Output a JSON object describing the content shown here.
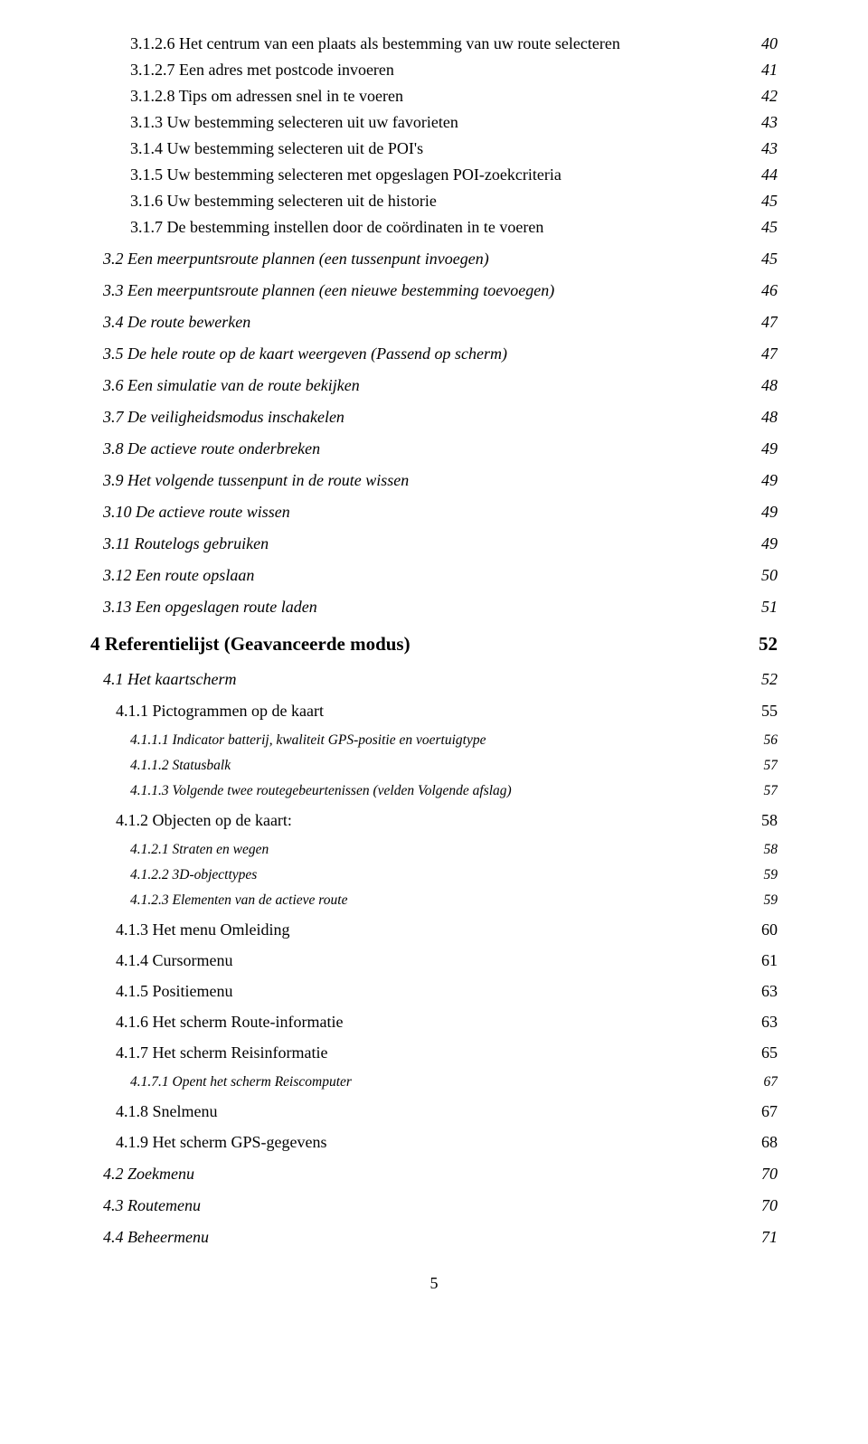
{
  "page_number": "5",
  "entries": [
    {
      "level": "a",
      "title": "3.1.2.6 Het centrum van een plaats als bestemming van uw route selecteren",
      "page": "40"
    },
    {
      "level": "a",
      "title": "3.1.2.7 Een adres met postcode invoeren",
      "page": "41"
    },
    {
      "level": "a",
      "title": "3.1.2.8 Tips om adressen snel in te voeren",
      "page": "42"
    },
    {
      "level": "a",
      "title": "3.1.3 Uw bestemming selecteren uit uw favorieten",
      "page": "43"
    },
    {
      "level": "a",
      "title": "3.1.4 Uw bestemming selecteren uit de POI's",
      "page": "43"
    },
    {
      "level": "a",
      "title": "3.1.5 Uw bestemming selecteren met opgeslagen POI-zoekcriteria",
      "page": "44"
    },
    {
      "level": "a",
      "title": "3.1.6 Uw bestemming selecteren uit de historie",
      "page": "45"
    },
    {
      "level": "a",
      "title": "3.1.7 De bestemming instellen door de coördinaten in te voeren",
      "page": "45"
    },
    {
      "level": "b",
      "title": "3.2 Een meerpuntsroute plannen (een tussenpunt invoegen)",
      "page": "45"
    },
    {
      "level": "b",
      "title": "3.3 Een meerpuntsroute plannen (een nieuwe bestemming toevoegen)",
      "page": "46"
    },
    {
      "level": "b",
      "title": "3.4 De route bewerken",
      "page": "47"
    },
    {
      "level": "b",
      "title": "3.5 De hele route op de kaart weergeven (Passend op scherm)",
      "page": "47"
    },
    {
      "level": "b",
      "title": "3.6 Een simulatie van de route bekijken",
      "page": "48"
    },
    {
      "level": "b",
      "title": "3.7 De veiligheidsmodus inschakelen",
      "page": "48"
    },
    {
      "level": "b",
      "title": "3.8 De actieve route onderbreken",
      "page": "49"
    },
    {
      "level": "b",
      "title": "3.9 Het volgende tussenpunt in de route wissen",
      "page": "49"
    },
    {
      "level": "b",
      "title": "3.10 De actieve route wissen",
      "page": "49"
    },
    {
      "level": "b",
      "title": "3.11 Routelogs gebruiken",
      "page": "49"
    },
    {
      "level": "b",
      "title": "3.12 Een route opslaan",
      "page": "50"
    },
    {
      "level": "b",
      "title": "3.13 Een opgeslagen route laden",
      "page": "51"
    },
    {
      "level": "s",
      "title": "4 Referentielijst (Geavanceerde modus)",
      "page": "52"
    },
    {
      "level": "b",
      "title": "4.1 Het kaartscherm",
      "page": "52"
    },
    {
      "level": "c",
      "title": "4.1.1 Pictogrammen op de kaart",
      "page": "55"
    },
    {
      "level": "d",
      "title": "4.1.1.1 Indicator batterij, kwaliteit GPS-positie en voertuigtype",
      "page": "56"
    },
    {
      "level": "d",
      "title": "4.1.1.2 Statusbalk",
      "page": "57"
    },
    {
      "level": "d",
      "title": "4.1.1.3 Volgende twee routegebeurtenissen (velden Volgende afslag)",
      "page": "57"
    },
    {
      "level": "c",
      "title": "4.1.2 Objecten op de kaart:",
      "page": "58"
    },
    {
      "level": "d",
      "title": "4.1.2.1 Straten en wegen",
      "page": "58"
    },
    {
      "level": "d",
      "title": "4.1.2.2 3D-objecttypes",
      "page": "59"
    },
    {
      "level": "d",
      "title": "4.1.2.3 Elementen van de actieve route",
      "page": "59"
    },
    {
      "level": "c",
      "title": "4.1.3 Het menu Omleiding",
      "page": "60"
    },
    {
      "level": "c",
      "title": "4.1.4 Cursormenu",
      "page": "61"
    },
    {
      "level": "c",
      "title": "4.1.5 Positiemenu",
      "page": "63"
    },
    {
      "level": "c",
      "title": "4.1.6 Het scherm Route-informatie",
      "page": "63"
    },
    {
      "level": "c",
      "title": "4.1.7 Het scherm Reisinformatie",
      "page": "65"
    },
    {
      "level": "d",
      "title": "4.1.7.1 Opent het scherm Reiscomputer",
      "page": "67"
    },
    {
      "level": "c",
      "title": "4.1.8 Snelmenu",
      "page": "67"
    },
    {
      "level": "c",
      "title": "4.1.9 Het scherm GPS-gegevens",
      "page": "68"
    },
    {
      "level": "b",
      "title": "4.2 Zoekmenu",
      "page": "70"
    },
    {
      "level": "b",
      "title": "4.3 Routemenu",
      "page": "70"
    },
    {
      "level": "b",
      "title": "4.4 Beheermenu",
      "page": "71"
    }
  ]
}
